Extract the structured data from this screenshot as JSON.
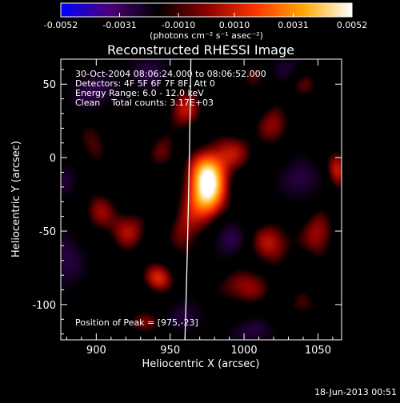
{
  "chart_data": {
    "type": "heatmap",
    "title": "Reconstructed RHESSI Image",
    "xlabel": "Heliocentric X (arcsec)",
    "ylabel": "Heliocentric Y (arcsec)",
    "xlim": [
      876,
      1066
    ],
    "ylim": [
      -124,
      67
    ],
    "xticks": [
      900,
      950,
      1000,
      1050
    ],
    "yticks": [
      50,
      0,
      -50,
      -100
    ],
    "colorbar": {
      "ticks": [
        "-0.0052",
        "-0.0031",
        "-0.0010",
        "0.0010",
        "0.0031",
        "0.0052"
      ],
      "unit_label": "(photons cm⁻² s⁻¹ asec⁻²)",
      "range": [
        -0.0052,
        0.0052
      ],
      "colors": [
        "#0000ff",
        "#4b007a",
        "#000000",
        "#8a0000",
        "#ff3300",
        "#ffaa00",
        "#ffffff"
      ]
    },
    "annotations": [
      "30-Oct-2004 08:06:24.000 to 08:06:52.000",
      "Detectors: 4F 5F 6F 7F 8F, Att 0",
      "Energy Range: 6.0 - 12.0 keV",
      "Clean    Total counts: 3.17E+03"
    ],
    "peak_label": "Position of Peak = [975,-23]",
    "peak": {
      "x": 975,
      "y": -23,
      "value": 0.0052
    },
    "blobs": [
      {
        "x": 975,
        "y": -23,
        "sx": 9,
        "sy": 13,
        "amp": 1.0
      },
      {
        "x": 975,
        "y": -8,
        "sx": 8,
        "sy": 9,
        "amp": 0.45
      },
      {
        "x": 960,
        "y": -50,
        "sx": 8,
        "sy": 14,
        "amp": 0.32
      },
      {
        "x": 942,
        "y": -82,
        "sx": 7,
        "sy": 7,
        "amp": 0.5
      },
      {
        "x": 922,
        "y": -50,
        "sx": 9,
        "sy": 10,
        "amp": 0.38
      },
      {
        "x": 902,
        "y": -36,
        "sx": 8,
        "sy": 10,
        "amp": 0.32
      },
      {
        "x": 960,
        "y": 33,
        "sx": 8,
        "sy": 10,
        "amp": 0.42
      },
      {
        "x": 945,
        "y": 4,
        "sx": 7,
        "sy": 9,
        "amp": 0.3
      },
      {
        "x": 992,
        "y": 4,
        "sx": 10,
        "sy": 9,
        "amp": 0.38
      },
      {
        "x": 1020,
        "y": 22,
        "sx": 8,
        "sy": 10,
        "amp": 0.36
      },
      {
        "x": 1018,
        "y": -58,
        "sx": 10,
        "sy": 10,
        "amp": 0.42
      },
      {
        "x": 1050,
        "y": -52,
        "sx": 8,
        "sy": 12,
        "amp": 0.38
      },
      {
        "x": 1063,
        "y": -8,
        "sx": 5,
        "sy": 9,
        "amp": 0.45
      },
      {
        "x": 1000,
        "y": -88,
        "sx": 13,
        "sy": 9,
        "amp": 0.36
      },
      {
        "x": 932,
        "y": -112,
        "sx": 10,
        "sy": 6,
        "amp": 0.28
      },
      {
        "x": 898,
        "y": 10,
        "sx": 8,
        "sy": 12,
        "amp": 0.25
      },
      {
        "x": 1040,
        "y": 50,
        "sx": 8,
        "sy": 8,
        "amp": 0.28
      },
      {
        "x": 1005,
        "y": 55,
        "sx": 8,
        "sy": 8,
        "amp": 0.22
      },
      {
        "x": 1040,
        "y": -100,
        "sx": 9,
        "sy": 8,
        "amp": 0.22
      },
      {
        "x": 898,
        "y": 45,
        "sx": 10,
        "sy": 8,
        "amp": -0.35
      },
      {
        "x": 935,
        "y": 58,
        "sx": 10,
        "sy": 8,
        "amp": -0.3
      },
      {
        "x": 880,
        "y": -70,
        "sx": 8,
        "sy": 12,
        "amp": -0.3
      },
      {
        "x": 990,
        "y": -55,
        "sx": 8,
        "sy": 9,
        "amp": -0.32
      },
      {
        "x": 1038,
        "y": -15,
        "sx": 9,
        "sy": 9,
        "amp": -0.32
      },
      {
        "x": 1030,
        "y": 60,
        "sx": 8,
        "sy": 7,
        "amp": -0.25
      },
      {
        "x": 1005,
        "y": -118,
        "sx": 10,
        "sy": 6,
        "amp": -0.28
      },
      {
        "x": 960,
        "y": -108,
        "sx": 8,
        "sy": 7,
        "amp": -0.28
      },
      {
        "x": 880,
        "y": -15,
        "sx": 6,
        "sy": 8,
        "amp": -0.22
      }
    ],
    "limb_curve": [
      [
        964,
        67
      ],
      [
        960,
        -124
      ]
    ],
    "grid": false,
    "legend": "none"
  },
  "footer": {
    "timestamp": "18-Jun-2013 00:51"
  }
}
